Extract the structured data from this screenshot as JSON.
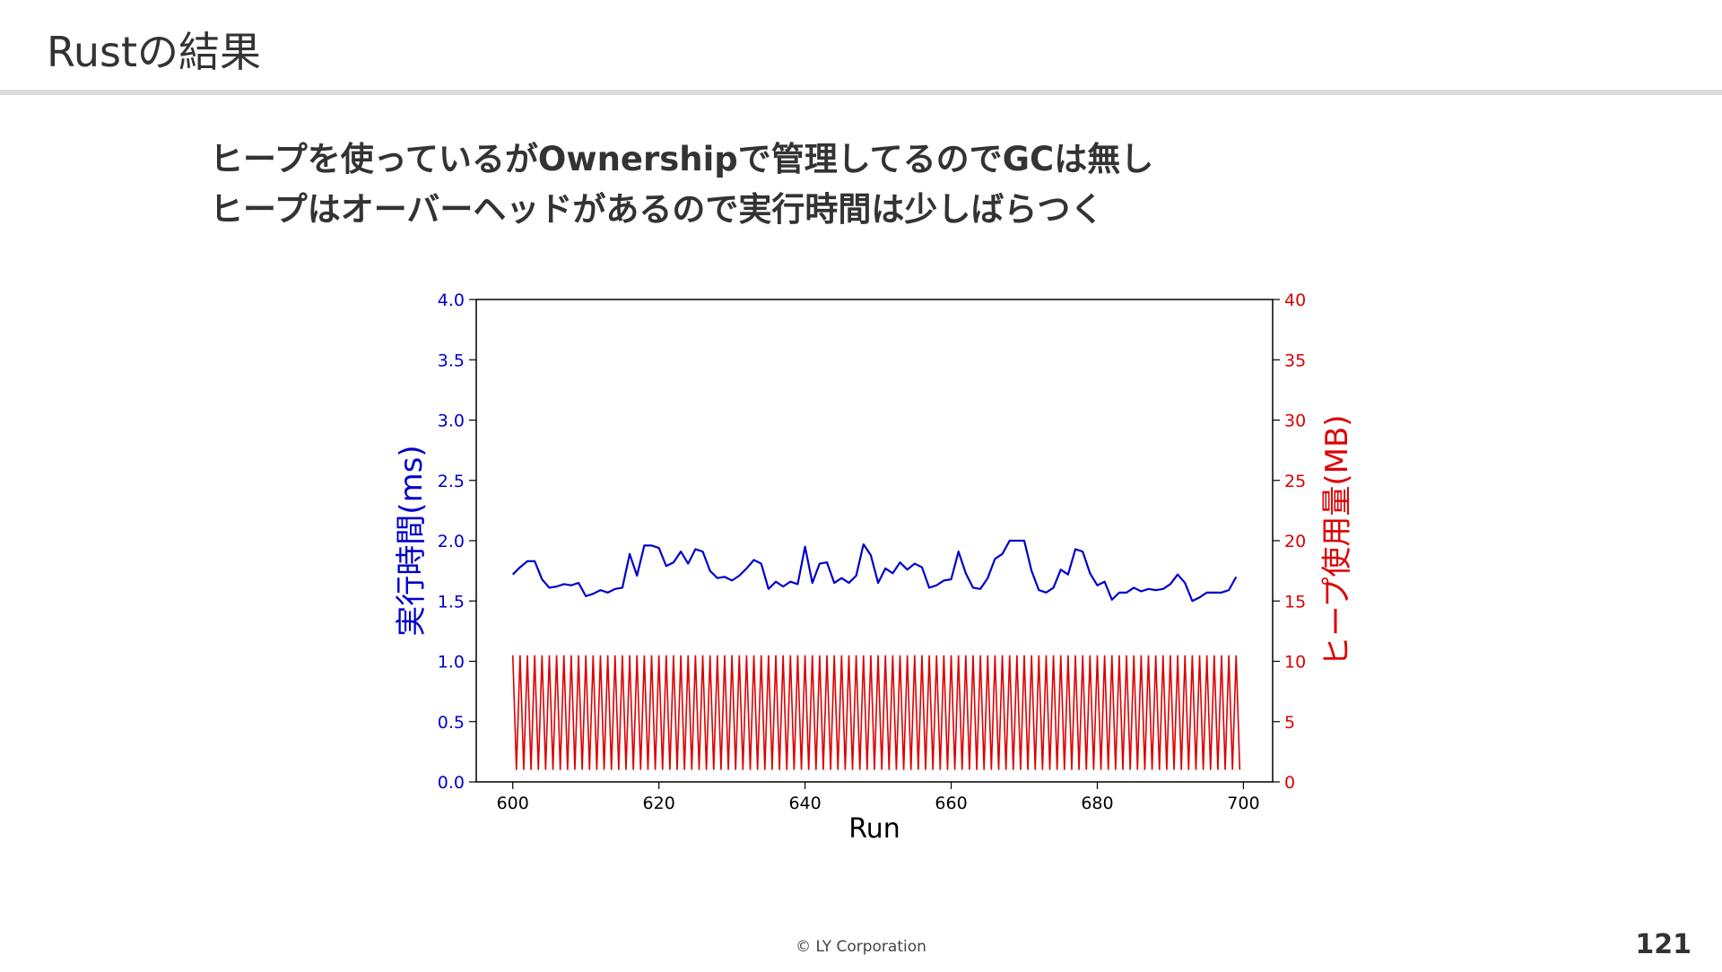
{
  "slide": {
    "title": "Rustの結果",
    "bullets": [
      "ヒープを使っているがOwnershipで管理してるのでGCは無し",
      "ヒープはオーバーヘッドがあるので実行時間は少しばらつく"
    ],
    "footer": "© LY Corporation",
    "page_number": "121"
  },
  "chart_data": {
    "type": "line",
    "xlabel": "Run",
    "ylabel_left": "実行時間(ms)",
    "ylabel_right": "ヒープ使用量(MB)",
    "xlim": [
      595,
      704
    ],
    "ylim_left": [
      0,
      4
    ],
    "ylim_right": [
      0,
      40
    ],
    "x_ticks": [
      600,
      620,
      640,
      660,
      680,
      700
    ],
    "y_ticks_left": [
      "0.0",
      "0.5",
      "1.0",
      "1.5",
      "2.0",
      "2.5",
      "3.0",
      "3.5",
      "4.0"
    ],
    "y_ticks_right": [
      "0",
      "5",
      "10",
      "15",
      "20",
      "25",
      "30",
      "35",
      "40"
    ],
    "grid": false,
    "colors": {
      "left_axis": "#0000cc",
      "right_axis": "#dd0000",
      "frame": "#000000"
    },
    "series": [
      {
        "axis": "left",
        "color": "#0000cc",
        "x_start": 600,
        "x_step": 1,
        "values": [
          1.72,
          1.78,
          1.83,
          1.83,
          1.68,
          1.61,
          1.62,
          1.64,
          1.63,
          1.65,
          1.54,
          1.56,
          1.59,
          1.57,
          1.6,
          1.61,
          1.89,
          1.71,
          1.96,
          1.96,
          1.94,
          1.79,
          1.82,
          1.91,
          1.81,
          1.93,
          1.91,
          1.75,
          1.69,
          1.7,
          1.67,
          1.71,
          1.77,
          1.84,
          1.81,
          1.6,
          1.66,
          1.62,
          1.66,
          1.64,
          1.95,
          1.65,
          1.81,
          1.82,
          1.65,
          1.69,
          1.65,
          1.71,
          1.97,
          1.88,
          1.65,
          1.77,
          1.73,
          1.82,
          1.76,
          1.81,
          1.78,
          1.61,
          1.63,
          1.67,
          1.68,
          1.91,
          1.73,
          1.61,
          1.6,
          1.69,
          1.85,
          1.89,
          2.0,
          2.0,
          2.0,
          1.75,
          1.59,
          1.57,
          1.61,
          1.76,
          1.72,
          1.93,
          1.91,
          1.73,
          1.63,
          1.66,
          1.51,
          1.57,
          1.57,
          1.61,
          1.58,
          1.6,
          1.59,
          1.6,
          1.64,
          1.72,
          1.65,
          1.5,
          1.53,
          1.57,
          1.57,
          1.57,
          1.59,
          1.7
        ]
      },
      {
        "axis": "right",
        "color": "#dd0000",
        "pattern": "alternating",
        "x_start": 600,
        "x_end": 699.5,
        "x_step": 0.5,
        "high": 10.5,
        "low": 1.0
      }
    ]
  }
}
